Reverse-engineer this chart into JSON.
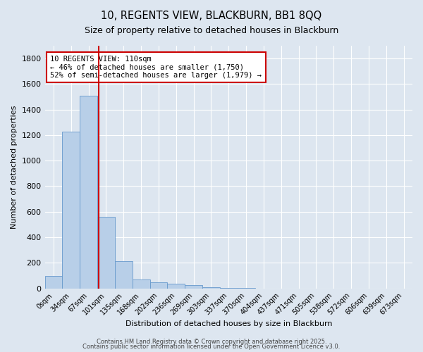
{
  "title": "10, REGENTS VIEW, BLACKBURN, BB1 8QQ",
  "subtitle": "Size of property relative to detached houses in Blackburn",
  "xlabel": "Distribution of detached houses by size in Blackburn",
  "ylabel": "Number of detached properties",
  "bar_labels": [
    "0sqm",
    "34sqm",
    "67sqm",
    "101sqm",
    "135sqm",
    "168sqm",
    "202sqm",
    "236sqm",
    "269sqm",
    "303sqm",
    "337sqm",
    "370sqm",
    "404sqm",
    "437sqm",
    "471sqm",
    "505sqm",
    "538sqm",
    "572sqm",
    "606sqm",
    "639sqm",
    "673sqm"
  ],
  "bar_values": [
    95,
    1230,
    1510,
    560,
    210,
    70,
    48,
    38,
    25,
    10,
    5,
    1,
    0,
    0,
    0,
    0,
    0,
    0,
    0,
    0,
    0
  ],
  "bar_color": "#b8cfe8",
  "bar_edge_color": "#6699cc",
  "background_color": "#dde6f0",
  "grid_color": "#ffffff",
  "vline_color": "#cc0000",
  "vline_index": 2.575,
  "annotation_title": "10 REGENTS VIEW: 110sqm",
  "annotation_line1": "← 46% of detached houses are smaller (1,750)",
  "annotation_line2": "52% of semi-detached houses are larger (1,979) →",
  "annotation_box_color": "#ffffff",
  "annotation_box_edge": "#cc0000",
  "ylim": [
    0,
    1900
  ],
  "yticks": [
    0,
    200,
    400,
    600,
    800,
    1000,
    1200,
    1400,
    1600,
    1800
  ],
  "footnote1": "Contains HM Land Registry data © Crown copyright and database right 2025.",
  "footnote2": "Contains public sector information licensed under the Open Government Licence v3.0."
}
